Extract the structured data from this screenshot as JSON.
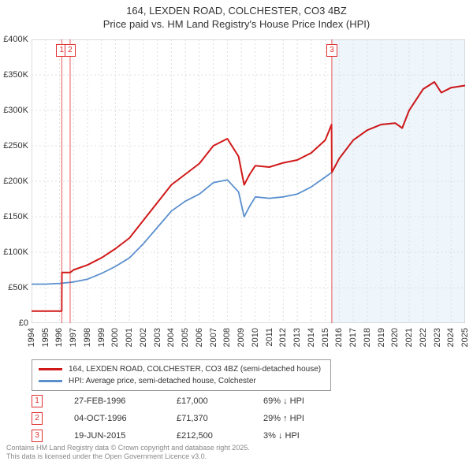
{
  "title_line1": "164, LEXDEN ROAD, COLCHESTER, CO3 4BZ",
  "title_line2": "Price paid vs. HM Land Registry's House Price Index (HPI)",
  "chart": {
    "type": "line",
    "x_axis": {
      "min": 1994,
      "max": 2025,
      "tick_step": 1
    },
    "y_axis": {
      "min": 0,
      "max": 400000,
      "tick_step": 50000,
      "prefix": "£",
      "labels": [
        "£0",
        "£50K",
        "£100K",
        "£150K",
        "£200K",
        "£250K",
        "£300K",
        "£350K",
        "£400K"
      ]
    },
    "grid_color": "#e0e0e0",
    "background_color": "#ffffff",
    "band_color": "#eef5fb",
    "band_ranges": [
      [
        2015.47,
        2025
      ]
    ],
    "marker_box_border": "#e03030",
    "marker_box_text": "#e03030",
    "markers": [
      {
        "label": "1",
        "x": 1996.16
      },
      {
        "label": "2",
        "x": 1996.76
      },
      {
        "label": "3",
        "x": 2015.47
      }
    ],
    "series": [
      {
        "id": "price_paid",
        "label": "164, LEXDEN ROAD, COLCHESTER, CO3 4BZ (semi-detached house)",
        "color": "#d01818",
        "width": 2,
        "points": [
          [
            1994,
            17000
          ],
          [
            1996.15,
            17000
          ],
          [
            1996.16,
            17000
          ],
          [
            1996.17,
            71370
          ],
          [
            1996.76,
            71370
          ],
          [
            1997,
            75000
          ],
          [
            1998,
            82000
          ],
          [
            1999,
            92000
          ],
          [
            2000,
            105000
          ],
          [
            2001,
            120000
          ],
          [
            2002,
            145000
          ],
          [
            2003,
            170000
          ],
          [
            2004,
            195000
          ],
          [
            2005,
            210000
          ],
          [
            2006,
            225000
          ],
          [
            2007,
            250000
          ],
          [
            2008,
            260000
          ],
          [
            2008.8,
            235000
          ],
          [
            2009.2,
            195000
          ],
          [
            2009.6,
            210000
          ],
          [
            2010,
            222000
          ],
          [
            2011,
            220000
          ],
          [
            2012,
            226000
          ],
          [
            2013,
            230000
          ],
          [
            2014,
            240000
          ],
          [
            2015,
            258000
          ],
          [
            2015.45,
            280000
          ],
          [
            2015.47,
            212500
          ],
          [
            2016,
            232000
          ],
          [
            2017,
            258000
          ],
          [
            2018,
            272000
          ],
          [
            2019,
            280000
          ],
          [
            2020,
            282000
          ],
          [
            2020.5,
            275000
          ],
          [
            2021,
            300000
          ],
          [
            2022,
            330000
          ],
          [
            2022.8,
            340000
          ],
          [
            2023.3,
            325000
          ],
          [
            2024,
            332000
          ],
          [
            2025,
            335000
          ]
        ]
      },
      {
        "id": "hpi",
        "label": "HPI: Average price, semi-detached house, Colchester",
        "color": "#5a8fce",
        "width": 1.8,
        "points": [
          [
            1994,
            55000
          ],
          [
            1995,
            55000
          ],
          [
            1996,
            56000
          ],
          [
            1997,
            58000
          ],
          [
            1998,
            62000
          ],
          [
            1999,
            70000
          ],
          [
            2000,
            80000
          ],
          [
            2001,
            92000
          ],
          [
            2002,
            112000
          ],
          [
            2003,
            135000
          ],
          [
            2004,
            158000
          ],
          [
            2005,
            172000
          ],
          [
            2006,
            182000
          ],
          [
            2007,
            198000
          ],
          [
            2008,
            202000
          ],
          [
            2008.8,
            185000
          ],
          [
            2009.2,
            150000
          ],
          [
            2009.6,
            165000
          ],
          [
            2010,
            178000
          ],
          [
            2011,
            176000
          ],
          [
            2012,
            178000
          ],
          [
            2013,
            182000
          ],
          [
            2014,
            192000
          ],
          [
            2015,
            206000
          ],
          [
            2015.47,
            212500
          ],
          [
            2016,
            232000
          ],
          [
            2017,
            258000
          ],
          [
            2018,
            272000
          ],
          [
            2019,
            280000
          ],
          [
            2020,
            282000
          ],
          [
            2020.5,
            275000
          ],
          [
            2021,
            300000
          ],
          [
            2022,
            330000
          ],
          [
            2022.8,
            340000
          ],
          [
            2023.3,
            325000
          ],
          [
            2024,
            332000
          ],
          [
            2025,
            335000
          ]
        ]
      }
    ]
  },
  "legend": {
    "border_color": "#999999",
    "items": [
      {
        "color": "#d01818",
        "label": "164, LEXDEN ROAD, COLCHESTER, CO3 4BZ (semi-detached house)"
      },
      {
        "color": "#5a8fce",
        "label": "HPI: Average price, semi-detached house, Colchester"
      }
    ]
  },
  "events": [
    {
      "n": "1",
      "date": "27-FEB-1996",
      "price": "£17,000",
      "delta": "69% ↓ HPI"
    },
    {
      "n": "2",
      "date": "04-OCT-1996",
      "price": "£71,370",
      "delta": "29% ↑ HPI"
    },
    {
      "n": "3",
      "date": "19-JUN-2015",
      "price": "£212,500",
      "delta": "3% ↓ HPI"
    }
  ],
  "footer_line1": "Contains HM Land Registry data © Crown copyright and database right 2025.",
  "footer_line2": "This data is licensed under the Open Government Licence v3.0."
}
